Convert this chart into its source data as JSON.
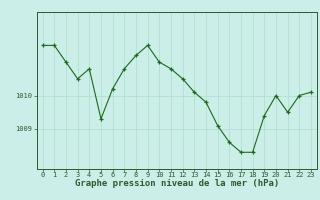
{
  "hours": [
    0,
    1,
    2,
    3,
    4,
    5,
    6,
    7,
    8,
    9,
    10,
    11,
    12,
    13,
    14,
    15,
    16,
    17,
    18,
    19,
    20,
    21,
    22,
    23
  ],
  "pressure": [
    1011.5,
    1011.5,
    1011.0,
    1010.5,
    1010.8,
    1009.3,
    1010.2,
    1010.8,
    1011.2,
    1011.5,
    1011.0,
    1010.8,
    1010.5,
    1010.1,
    1009.8,
    1009.1,
    1008.6,
    1008.3,
    1008.3,
    1009.4,
    1010.0,
    1009.5,
    1010.0,
    1010.1
  ],
  "line_color": "#1a6b1a",
  "marker": "+",
  "bg_color": "#cceee8",
  "grid_color": "#aaddcc",
  "axis_color": "#2d5a2d",
  "ylabel_1010": 1010,
  "ylabel_1009": 1009,
  "ylim_min": 1007.8,
  "ylim_max": 1012.5,
  "xlabel": "Graphe pression niveau de la mer (hPa)",
  "title_fontsize": 6.5,
  "tick_fontsize": 5.0
}
